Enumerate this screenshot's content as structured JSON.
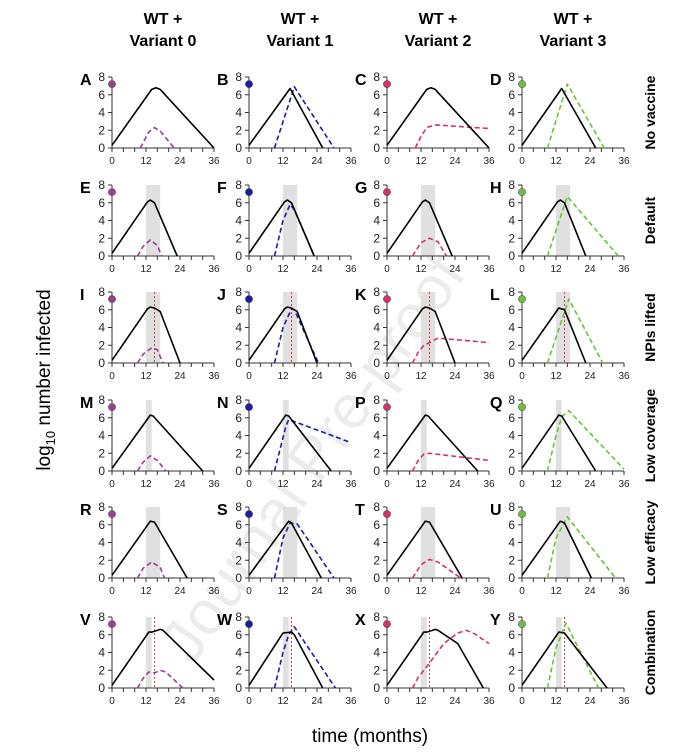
{
  "chart_data": {
    "type": "line",
    "xlabel": "time (months)",
    "ylabel": "log",
    "ylabel_sub": "10",
    "ylabel_rest": " number infected",
    "xlim": [
      0,
      36
    ],
    "ylim": [
      0,
      8
    ],
    "x_ticks": [
      "0",
      "12",
      "24",
      "36"
    ],
    "y_ticks": [
      "0",
      "2",
      "4",
      "6",
      "8"
    ],
    "watermark": "Journal Pre-proof",
    "columns": [
      {
        "title1": "WT +",
        "title2": "Variant 0",
        "color": "#9b3f8f"
      },
      {
        "title1": "WT +",
        "title2": "Variant 1",
        "color": "#1c1ca8"
      },
      {
        "title1": "WT +",
        "title2": "Variant 2",
        "color": "#d8306c"
      },
      {
        "title1": "WT +",
        "title2": "Variant 3",
        "color": "#6cc13a"
      }
    ],
    "rows": [
      {
        "label": "No vaccine",
        "vaccination_window": null,
        "npi_lift_month": null
      },
      {
        "label": "Default",
        "vaccination_window": [
          12,
          17
        ],
        "npi_lift_month": null
      },
      {
        "label": "NPIs lifted",
        "vaccination_window": [
          12,
          17
        ],
        "npi_lift_month": 15
      },
      {
        "label": "Low coverage",
        "vaccination_window": [
          12,
          14
        ],
        "npi_lift_month": null
      },
      {
        "label": "Low efficacy",
        "vaccination_window": [
          12,
          17
        ],
        "npi_lift_month": null
      },
      {
        "label": "Combination",
        "vaccination_window": [
          12,
          14
        ],
        "npi_lift_month": 15
      }
    ],
    "variant_introduction_level": 7.2,
    "panels": [
      {
        "letter": "A",
        "wt": [
          [
            0,
            0.3
          ],
          [
            14,
            6.6
          ],
          [
            15.5,
            6.8
          ],
          [
            17,
            6.6
          ],
          [
            36,
            0
          ]
        ],
        "variant": [
          [
            10,
            0
          ],
          [
            13,
            1.8
          ],
          [
            15,
            2.3
          ],
          [
            17,
            1.9
          ],
          [
            22,
            0
          ]
        ]
      },
      {
        "letter": "B",
        "wt": [
          [
            0,
            0.3
          ],
          [
            14.5,
            6.7
          ],
          [
            26,
            0
          ]
        ],
        "variant": [
          [
            9,
            0
          ],
          [
            16,
            6.9
          ],
          [
            30,
            0
          ]
        ]
      },
      {
        "letter": "C",
        "wt": [
          [
            0,
            0.3
          ],
          [
            14,
            6.6
          ],
          [
            15.5,
            6.8
          ],
          [
            17,
            6.6
          ],
          [
            36,
            0
          ]
        ],
        "variant": [
          [
            10,
            0
          ],
          [
            12,
            1.3
          ],
          [
            14,
            2.3
          ],
          [
            17,
            2.6
          ],
          [
            36,
            2.2
          ]
        ]
      },
      {
        "letter": "D",
        "wt": [
          [
            0,
            0.3
          ],
          [
            14,
            6.7
          ],
          [
            26,
            0
          ]
        ],
        "variant": [
          [
            9,
            0
          ],
          [
            16,
            7.2
          ],
          [
            29,
            0
          ]
        ]
      },
      {
        "letter": "E",
        "wt": [
          [
            0,
            0.3
          ],
          [
            12.5,
            6.1
          ],
          [
            13.5,
            6.3
          ],
          [
            15,
            6
          ],
          [
            23,
            0
          ]
        ],
        "variant": [
          [
            9,
            0
          ],
          [
            11,
            1.1
          ],
          [
            13.5,
            1.8
          ],
          [
            16,
            1.2
          ],
          [
            17.5,
            0
          ]
        ]
      },
      {
        "letter": "F",
        "wt": [
          [
            0,
            0.3
          ],
          [
            12.5,
            6.1
          ],
          [
            13.5,
            6.3
          ],
          [
            15,
            6
          ],
          [
            23,
            0
          ]
        ],
        "variant": [
          [
            9,
            0
          ],
          [
            12,
            4
          ],
          [
            14.5,
            5.8
          ],
          [
            16,
            5.2
          ],
          [
            23,
            0
          ]
        ]
      },
      {
        "letter": "G",
        "wt": [
          [
            0,
            0.3
          ],
          [
            12.5,
            6.1
          ],
          [
            13.5,
            6.3
          ],
          [
            15,
            6
          ],
          [
            23,
            0
          ]
        ],
        "variant": [
          [
            9,
            0
          ],
          [
            12,
            1.5
          ],
          [
            15,
            2.0
          ],
          [
            18,
            1.6
          ],
          [
            21,
            0
          ]
        ]
      },
      {
        "letter": "H",
        "wt": [
          [
            0,
            0.3
          ],
          [
            12.5,
            6.1
          ],
          [
            13.5,
            6.3
          ],
          [
            15,
            6
          ],
          [
            22.5,
            0
          ]
        ],
        "variant": [
          [
            9,
            0
          ],
          [
            16,
            6.7
          ],
          [
            34,
            0
          ]
        ]
      },
      {
        "letter": "I",
        "wt": [
          [
            0,
            0.3
          ],
          [
            12.5,
            6.1
          ],
          [
            13.5,
            6.3
          ],
          [
            15,
            6.2
          ],
          [
            17,
            5.8
          ],
          [
            24,
            0
          ]
        ],
        "variant": [
          [
            9,
            0
          ],
          [
            11,
            1.0
          ],
          [
            14,
            1.7
          ],
          [
            16,
            1.5
          ],
          [
            18,
            0
          ]
        ]
      },
      {
        "letter": "J",
        "wt": [
          [
            0,
            0.3
          ],
          [
            12.5,
            6.1
          ],
          [
            13.5,
            6.3
          ],
          [
            15,
            6.2
          ],
          [
            17,
            5.8
          ],
          [
            24,
            0
          ]
        ],
        "variant": [
          [
            9,
            0
          ],
          [
            12,
            4
          ],
          [
            15,
            6.1
          ],
          [
            16,
            6
          ],
          [
            24.5,
            0
          ]
        ]
      },
      {
        "letter": "K",
        "wt": [
          [
            0,
            0.3
          ],
          [
            12.5,
            6.1
          ],
          [
            13.5,
            6.3
          ],
          [
            15,
            6.2
          ],
          [
            17,
            5.8
          ],
          [
            24,
            0
          ]
        ],
        "variant": [
          [
            9,
            0
          ],
          [
            11,
            1.2
          ],
          [
            13,
            2
          ],
          [
            15,
            2.3
          ],
          [
            18,
            2.8
          ],
          [
            36,
            2.3
          ]
        ]
      },
      {
        "letter": "L",
        "wt": [
          [
            0,
            0.3
          ],
          [
            13,
            6.2
          ],
          [
            15,
            6
          ],
          [
            22.5,
            0
          ]
        ],
        "variant": [
          [
            9,
            0
          ],
          [
            16.5,
            7.2
          ],
          [
            28.5,
            0
          ]
        ]
      },
      {
        "letter": "M",
        "wt": [
          [
            0,
            0.3
          ],
          [
            13.5,
            6.3
          ],
          [
            14.5,
            6.2
          ],
          [
            32,
            0
          ]
        ],
        "variant": [
          [
            9,
            0
          ],
          [
            11,
            1
          ],
          [
            13.5,
            1.7
          ],
          [
            16,
            1.2
          ],
          [
            19,
            0
          ]
        ]
      },
      {
        "letter": "N",
        "wt": [
          [
            0,
            0.3
          ],
          [
            13,
            6.3
          ],
          [
            14,
            6.2
          ],
          [
            29,
            0
          ]
        ],
        "variant": [
          [
            9,
            0
          ],
          [
            13,
            5
          ],
          [
            14,
            5.8
          ],
          [
            36,
            3.2
          ]
        ]
      },
      {
        "letter": "P",
        "wt": [
          [
            0,
            0.3
          ],
          [
            13.5,
            6.3
          ],
          [
            14.5,
            6.2
          ],
          [
            32,
            0
          ]
        ],
        "variant": [
          [
            9,
            0
          ],
          [
            11,
            1.2
          ],
          [
            13,
            1.9
          ],
          [
            15,
            2
          ],
          [
            36,
            1.2
          ]
        ]
      },
      {
        "letter": "Q",
        "wt": [
          [
            0,
            0.3
          ],
          [
            13,
            6.3
          ],
          [
            14,
            6.2
          ],
          [
            26,
            0
          ]
        ],
        "variant": [
          [
            9,
            0
          ],
          [
            12,
            4
          ],
          [
            14,
            6.1
          ],
          [
            16.5,
            6.8
          ],
          [
            36,
            0.2
          ]
        ]
      },
      {
        "letter": "R",
        "wt": [
          [
            0,
            0.3
          ],
          [
            13.5,
            6.4
          ],
          [
            15,
            6.3
          ],
          [
            26.5,
            0
          ]
        ],
        "variant": [
          [
            9,
            0
          ],
          [
            11,
            1.1
          ],
          [
            14,
            1.8
          ],
          [
            17,
            1.2
          ],
          [
            18.5,
            0
          ]
        ]
      },
      {
        "letter": "S",
        "wt": [
          [
            0,
            0.3
          ],
          [
            14,
            6.4
          ],
          [
            15,
            6.2
          ],
          [
            25.5,
            0
          ]
        ],
        "variant": [
          [
            9,
            0
          ],
          [
            12,
            4.5
          ],
          [
            14.5,
            6.2
          ],
          [
            17,
            6.1
          ],
          [
            30,
            0
          ]
        ]
      },
      {
        "letter": "T",
        "wt": [
          [
            0,
            0.3
          ],
          [
            13.5,
            6.4
          ],
          [
            15,
            6.3
          ],
          [
            26.5,
            0
          ]
        ],
        "variant": [
          [
            9,
            0
          ],
          [
            12,
            1.5
          ],
          [
            15,
            2.1
          ],
          [
            18,
            1.8
          ],
          [
            26,
            0
          ]
        ]
      },
      {
        "letter": "U",
        "wt": [
          [
            0,
            0.3
          ],
          [
            13.5,
            6.4
          ],
          [
            15,
            6.2
          ],
          [
            24.5,
            0
          ]
        ],
        "variant": [
          [
            9,
            0
          ],
          [
            12,
            4.5
          ],
          [
            16,
            6.9
          ],
          [
            33,
            0
          ]
        ]
      },
      {
        "letter": "V",
        "wt": [
          [
            0,
            0.3
          ],
          [
            13,
            6.3
          ],
          [
            14,
            6.3
          ],
          [
            15,
            6.4
          ],
          [
            17,
            6.6
          ],
          [
            18,
            6.5
          ],
          [
            36,
            0.9
          ]
        ],
        "variant": [
          [
            9,
            0
          ],
          [
            11,
            1.1
          ],
          [
            13,
            1.8
          ],
          [
            15,
            1.7
          ],
          [
            17,
            2.0
          ],
          [
            19,
            1.8
          ],
          [
            25,
            0
          ]
        ]
      },
      {
        "letter": "W",
        "wt": [
          [
            0,
            0.3
          ],
          [
            12,
            6.2
          ],
          [
            15,
            6.3
          ],
          [
            16,
            6
          ],
          [
            26,
            0
          ]
        ],
        "variant": [
          [
            9,
            0
          ],
          [
            12,
            4
          ],
          [
            14,
            6
          ],
          [
            16,
            6.9
          ],
          [
            30.5,
            0
          ]
        ]
      },
      {
        "letter": "X",
        "wt": [
          [
            0,
            0.3
          ],
          [
            13,
            6.3
          ],
          [
            14,
            6.3
          ],
          [
            15,
            6.4
          ],
          [
            17,
            6.6
          ],
          [
            18,
            6.5
          ],
          [
            25,
            5
          ],
          [
            34,
            0
          ]
        ],
        "variant": [
          [
            9,
            0
          ],
          [
            11,
            1.2
          ],
          [
            13,
            2
          ],
          [
            15,
            2.8
          ],
          [
            20,
            5
          ],
          [
            25,
            6.2
          ],
          [
            28,
            6.5
          ],
          [
            31,
            6.1
          ],
          [
            36,
            5
          ]
        ]
      },
      {
        "letter": "Y",
        "wt": [
          [
            0,
            0.3
          ],
          [
            13,
            6.3
          ],
          [
            15,
            6.2
          ],
          [
            30,
            0
          ]
        ],
        "variant": [
          [
            9,
            0
          ],
          [
            12,
            4.5
          ],
          [
            15.5,
            7.3
          ],
          [
            27,
            0
          ]
        ]
      }
    ]
  }
}
